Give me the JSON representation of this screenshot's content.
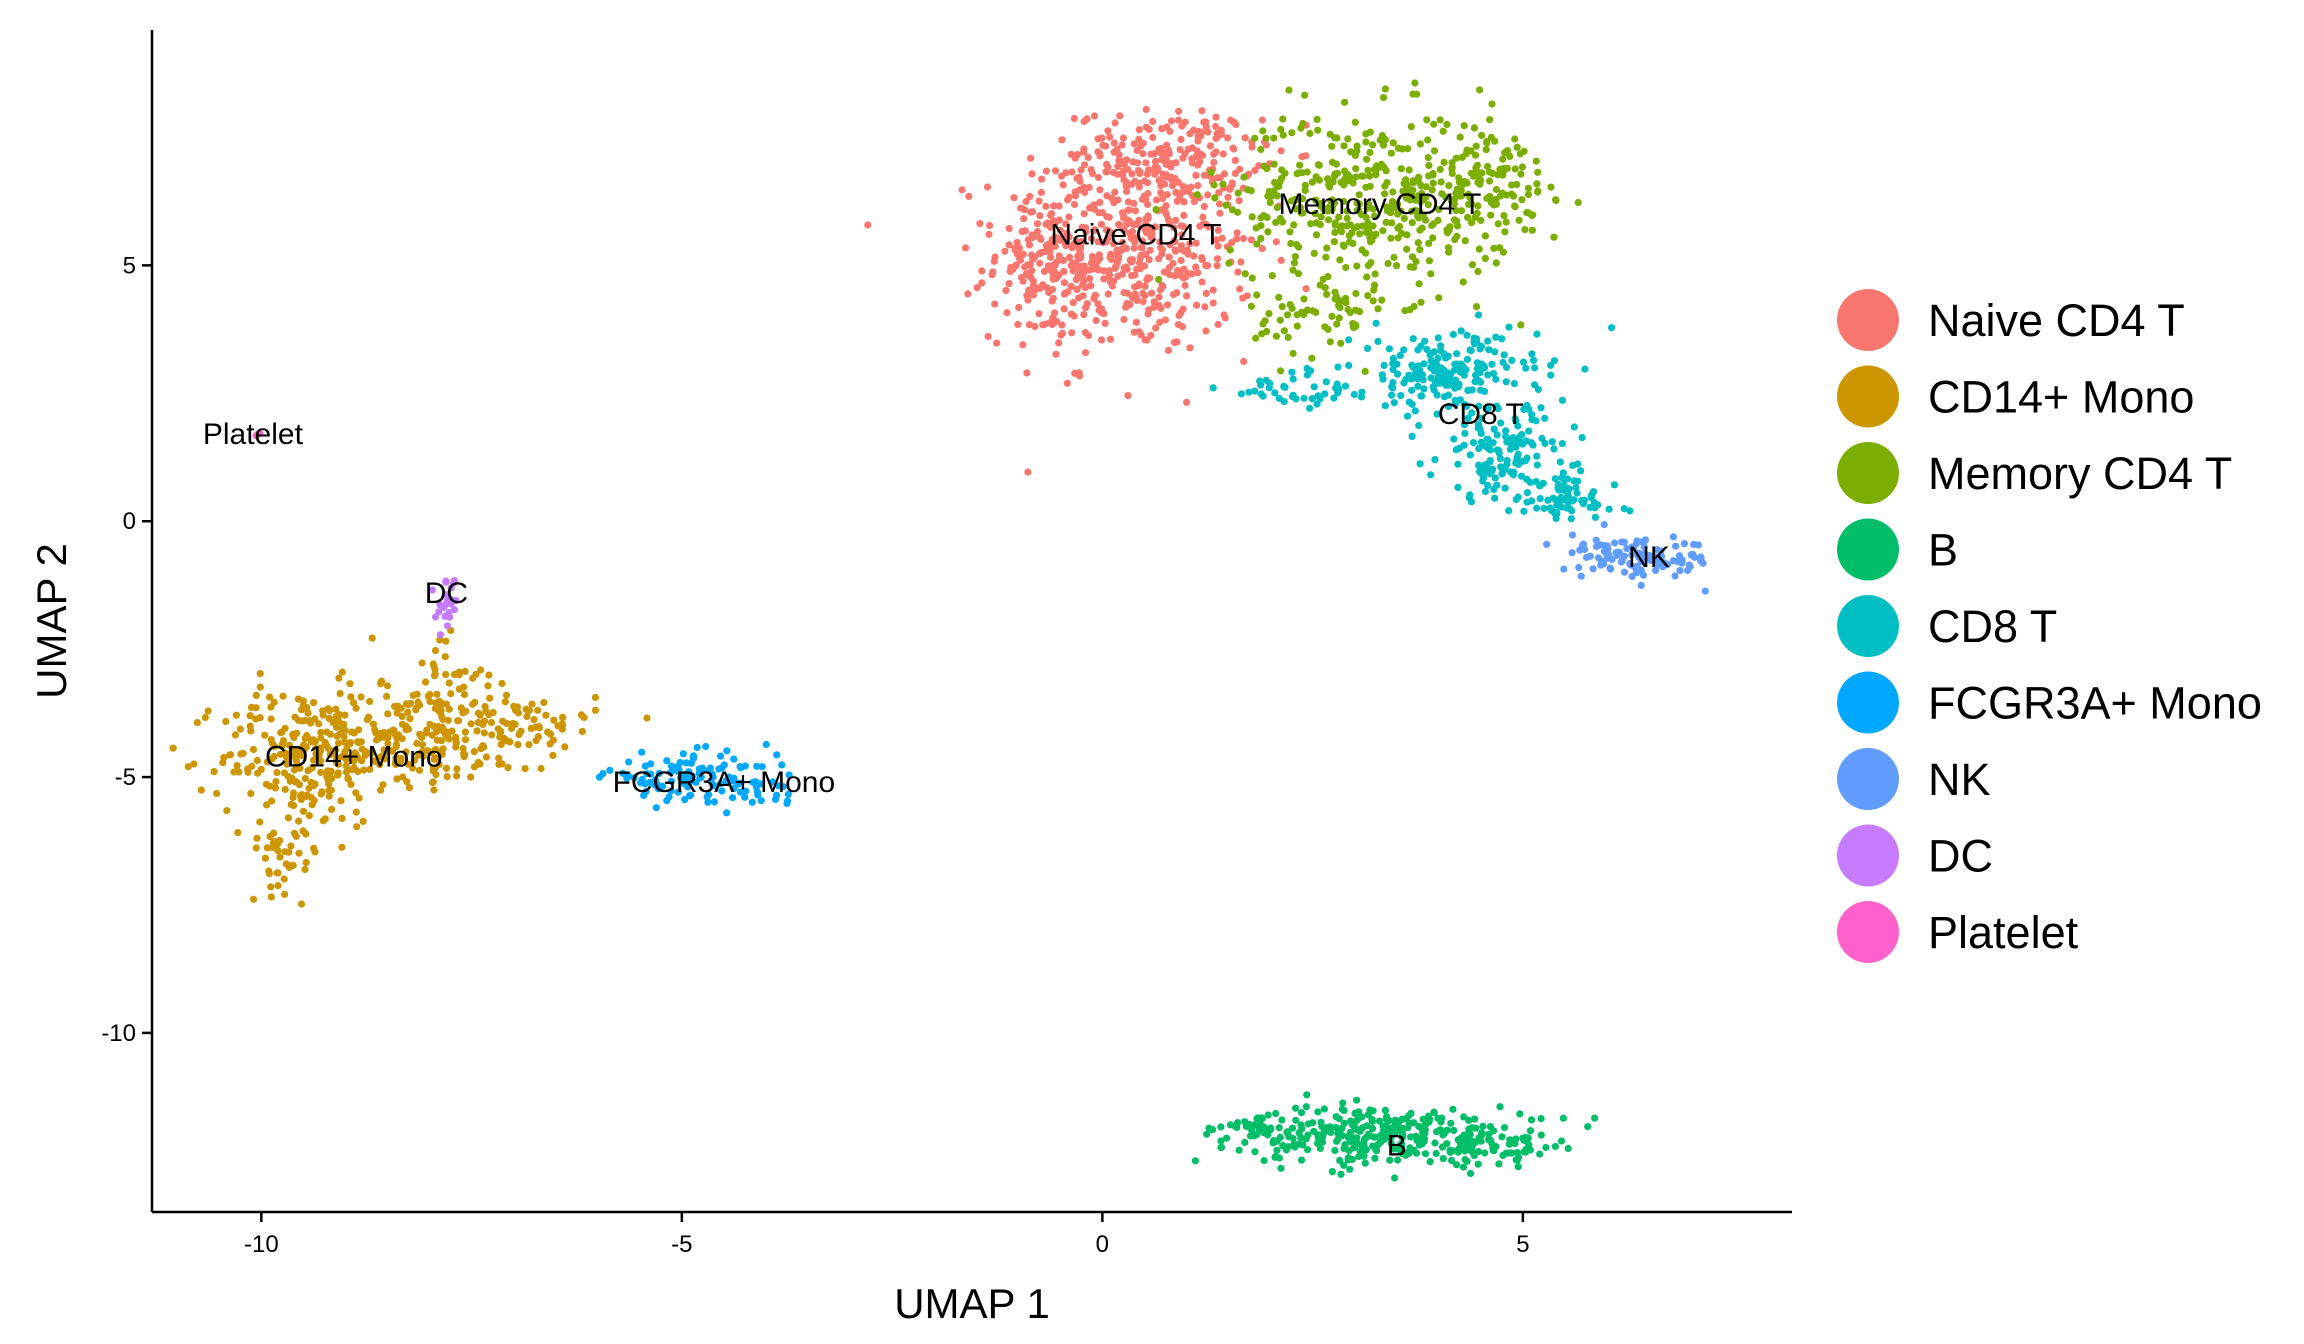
{
  "chart_data": {
    "type": "scatter",
    "title": "",
    "xlabel": "UMAP 1",
    "ylabel": "UMAP 2",
    "xlim": [
      -11.3,
      8.2
    ],
    "ylim": [
      -13.5,
      9.6
    ],
    "x_ticks": [
      -10,
      -5,
      0,
      5
    ],
    "y_ticks": [
      -10,
      -5,
      0,
      5
    ],
    "grid": false,
    "legend_position": "right",
    "series": [
      {
        "name": "Naive CD4 T",
        "color": "#F8766D",
        "label_at": [
          0.4,
          5.6
        ],
        "clusters": [
          {
            "center": [
              0.3,
              5.3
            ],
            "spread": [
              0.85,
              1.15
            ],
            "count": 520
          },
          {
            "center": [
              0.8,
              7.2
            ],
            "spread": [
              0.6,
              0.45
            ],
            "count": 160
          },
          {
            "center": [
              -0.7,
              5.0
            ],
            "spread": [
              0.35,
              0.8
            ],
            "count": 90
          }
        ]
      },
      {
        "name": "CD14+ Mono",
        "color": "#CD9600",
        "label_at": [
          -8.9,
          -4.6
        ],
        "clusters": [
          {
            "center": [
              -9.5,
              -4.6
            ],
            "spread": [
              0.55,
              0.75
            ],
            "count": 230
          },
          {
            "center": [
              -8.2,
              -4.2
            ],
            "spread": [
              0.7,
              0.55
            ],
            "count": 190
          },
          {
            "center": [
              -7.0,
              -4.0
            ],
            "spread": [
              0.55,
              0.4
            ],
            "count": 90
          },
          {
            "center": [
              -9.7,
              -6.4
            ],
            "spread": [
              0.25,
              0.45
            ],
            "count": 45
          },
          {
            "center": [
              -7.8,
              -3.0
            ],
            "spread": [
              0.25,
              0.4
            ],
            "count": 30
          }
        ]
      },
      {
        "name": "Memory CD4 T",
        "color": "#7CAE00",
        "label_at": [
          3.3,
          6.2
        ],
        "clusters": [
          {
            "center": [
              3.2,
              6.3
            ],
            "spread": [
              0.95,
              0.95
            ],
            "count": 420
          },
          {
            "center": [
              4.6,
              6.6
            ],
            "spread": [
              0.4,
              0.6
            ],
            "count": 90
          },
          {
            "center": [
              2.6,
              4.0
            ],
            "spread": [
              0.45,
              0.45
            ],
            "count": 60
          }
        ]
      },
      {
        "name": "B",
        "color": "#00BE67",
        "label_at": [
          3.5,
          -12.2
        ],
        "clusters": [
          {
            "center": [
              3.4,
              -12.0
            ],
            "spread": [
              0.95,
              0.32
            ],
            "count": 300
          },
          {
            "center": [
              1.8,
              -11.9
            ],
            "spread": [
              0.35,
              0.18
            ],
            "count": 40
          },
          {
            "center": [
              4.8,
              -12.2
            ],
            "spread": [
              0.35,
              0.2
            ],
            "count": 45
          }
        ]
      },
      {
        "name": "CD8 T",
        "color": "#00BFC4",
        "label_at": [
          4.5,
          2.1
        ],
        "clusters": [
          {
            "center": [
              4.1,
              2.9
            ],
            "spread": [
              0.6,
              0.45
            ],
            "count": 190
          },
          {
            "center": [
              4.8,
              1.3
            ],
            "spread": [
              0.45,
              0.5
            ],
            "count": 140
          },
          {
            "center": [
              5.5,
              0.4
            ],
            "spread": [
              0.35,
              0.3
            ],
            "count": 60
          },
          {
            "center": [
              2.4,
              2.6
            ],
            "spread": [
              0.55,
              0.22
            ],
            "count": 40
          }
        ]
      },
      {
        "name": "FCGR3A+ Mono",
        "color": "#00A9FF",
        "label_at": [
          -4.5,
          -5.1
        ],
        "clusters": [
          {
            "center": [
              -4.9,
              -5.0
            ],
            "spread": [
              0.55,
              0.25
            ],
            "count": 110
          },
          {
            "center": [
              -4.1,
              -5.3
            ],
            "spread": [
              0.25,
              0.12
            ],
            "count": 20
          }
        ]
      },
      {
        "name": "NK",
        "color": "#619CFF",
        "label_at": [
          6.5,
          -0.7
        ],
        "clusters": [
          {
            "center": [
              6.5,
              -0.75
            ],
            "spread": [
              0.45,
              0.2
            ],
            "count": 100
          },
          {
            "center": [
              5.9,
              -0.6
            ],
            "spread": [
              0.2,
              0.2
            ],
            "count": 20
          }
        ]
      },
      {
        "name": "DC",
        "color": "#C77CFF",
        "label_at": [
          -7.8,
          -1.4
        ],
        "clusters": [
          {
            "center": [
              -7.8,
              -1.6
            ],
            "spread": [
              0.07,
              0.3
            ],
            "count": 22
          }
        ]
      },
      {
        "name": "Platelet",
        "color": "#FF61CC",
        "label_at": [
          -10.1,
          1.7
        ],
        "clusters": [
          {
            "center": [
              -10.05,
              1.7
            ],
            "spread": [
              0.04,
              0.03
            ],
            "count": 3
          }
        ]
      }
    ]
  }
}
